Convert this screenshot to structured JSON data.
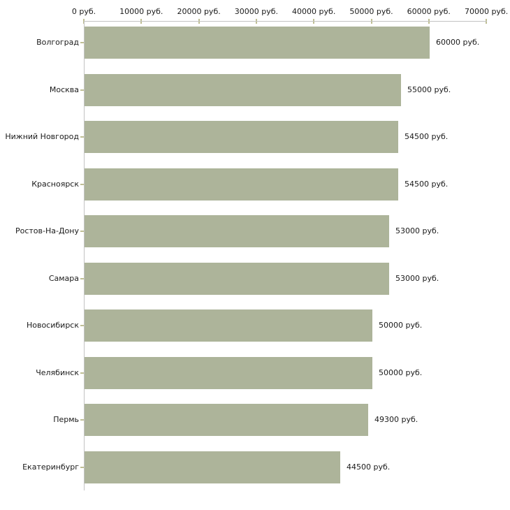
{
  "chart_data": {
    "type": "bar",
    "orientation": "horizontal",
    "title": "",
    "xlabel": "",
    "ylabel": "",
    "grid": false,
    "legend": false,
    "categories": [
      "Волгоград",
      "Москва",
      "Нижний Новгород",
      "Красноярск",
      "Ростов-На-Дону",
      "Самара",
      "Новосибирск",
      "Челябинск",
      "Пермь",
      "Екатеринбург"
    ],
    "values": [
      60000,
      55000,
      54500,
      54500,
      53000,
      53000,
      50000,
      50000,
      49300,
      44500
    ],
    "value_labels": [
      "60000 руб.",
      "55000 руб.",
      "54500 руб.",
      "54500 руб.",
      "53000 руб.",
      "53000 руб.",
      "50000 руб.",
      "50000 руб.",
      "49300 руб.",
      "44500 руб."
    ],
    "x_axis": {
      "position": "top",
      "range": [
        0,
        70000
      ],
      "ticks": [
        0,
        10000,
        20000,
        30000,
        40000,
        50000,
        60000,
        70000
      ],
      "tick_labels": [
        "0 руб.",
        "10000 руб.",
        "20000 руб.",
        "30000 руб.",
        "40000 руб.",
        "50000 руб.",
        "60000 руб.",
        "70000 руб."
      ]
    },
    "colors": {
      "bar": "#adb49a",
      "axis_line": "#c3c3c3",
      "tick_mark": "#bfbf94",
      "text": "#1a1a1a",
      "background": "#ffffff"
    }
  }
}
